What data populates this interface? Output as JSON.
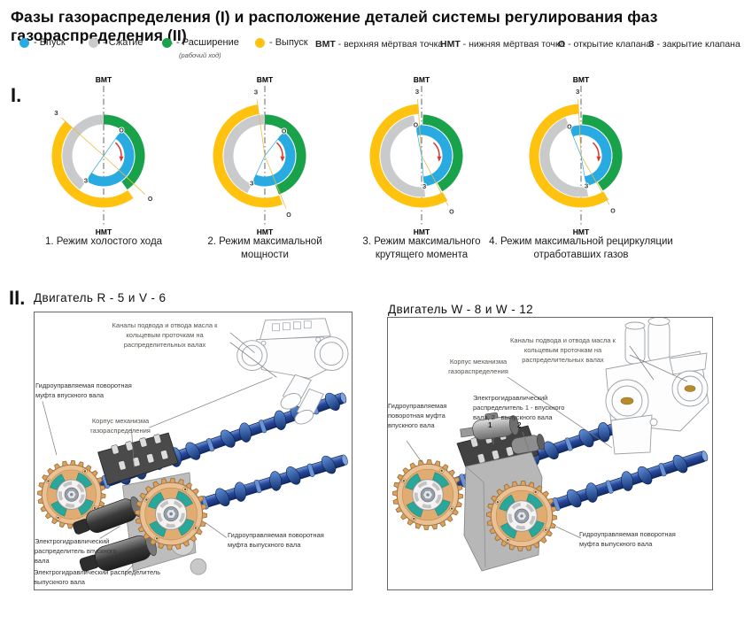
{
  "title": "Фазы газораспределения (I) и расположение деталей системы регулирования фаз газораспределения (II)",
  "legend": {
    "items": [
      {
        "label": "- Впуск",
        "color": "#29ABE2"
      },
      {
        "label": "- Сжатие",
        "color": "#C9CACC"
      },
      {
        "label": "- Расширение",
        "color": "#1AA24B",
        "note": "(рабочий ход)"
      },
      {
        "label": "- Выпуск",
        "color": "#FFC20E"
      }
    ],
    "definitions": [
      {
        "term": "ВМТ",
        "text": "- верхняя мёртвая точка"
      },
      {
        "term": "НМТ",
        "text": "- нижняя мёртвая точка"
      },
      {
        "term": "О",
        "text": "- открытие клапана"
      },
      {
        "term": "З",
        "text": "- закрытие клапана"
      }
    ]
  },
  "section1": {
    "numeral": "I.",
    "labels": {
      "top": "ВМТ",
      "bottom": "НМТ",
      "open": "О",
      "close": "З"
    },
    "colors": {
      "intake": "#29ABE2",
      "compression": "#C9CACC",
      "expansion": "#1AA24B",
      "exhaust": "#FFC20E",
      "rotation_arrow": "#D8382E"
    },
    "diagrams": [
      {
        "caption": "1. Режим холостого хода",
        "green": [
          0,
          145
        ],
        "yellow": [
          145,
          312
        ],
        "gray": [
          215,
          360
        ],
        "blue": [
          35,
          215
        ],
        "yellowOpen": 133,
        "yellowClose": 312,
        "blueOpen": 35,
        "blueClose": 215
      },
      {
        "caption": "2. Режим максимальной мощности",
        "green": [
          0,
          160
        ],
        "yellow": [
          160,
          352
        ],
        "gray": [
          205,
          360
        ],
        "blue": [
          38,
          205
        ],
        "yellowOpen": 158,
        "yellowClose": 352,
        "blueOpen": 38,
        "blueClose": 205
      },
      {
        "caption": "3. Режим максимального крутящего момента",
        "green": [
          2,
          150
        ],
        "yellow": [
          150,
          356
        ],
        "gray": [
          175,
          349
        ],
        "blue": [
          349,
          535
        ],
        "yellowOpen": 152,
        "yellowClose": 356,
        "blueOpen": 349,
        "blueClose": 175
      },
      {
        "caption": "4. Режим максимальной рециркуляции отработавших газов",
        "green": [
          2,
          148
        ],
        "yellow": [
          148,
          357
        ],
        "gray": [
          170,
          338
        ],
        "blue": [
          338,
          530
        ],
        "yellowOpen": 150,
        "yellowClose": 357,
        "blueOpen": 338,
        "blueClose": 170
      }
    ]
  },
  "section2": {
    "numeral": "II.",
    "engines": [
      {
        "heading": "Двигатель R - 5 и V - 6",
        "labels": {
          "oil_channels": "Каналы подвода и отвода масла к кольцевым проточкам на распределительных валах",
          "intake_coupling": "Гидроуправляемая поворотная муфта впускного вала",
          "housing": "Корпус механизма газораспределения",
          "intake_distributor": "Электрогидравлический распределитель впускного вала",
          "exhaust_distributor": "Электрогидравлический распределитель выпускного вала",
          "exhaust_coupling": "Гидроуправляемая поворотная муфта выпускного вала"
        }
      },
      {
        "heading": "Двигатель W - 8 и W - 12",
        "labels": {
          "oil_channels": "Каналы подвода и отвода масла к кольцевым проточкам на распределительных валах",
          "housing": "Корпус механизма газораспределения",
          "distributor": "Электрогидравлический распределитель 1 - впускного вала, 2 - выпускного вала",
          "marker_intake": "1",
          "marker_exhaust": "2",
          "intake_coupling": "Гидроуправляемая поворотная муфта впускного вала",
          "exhaust_coupling": "Гидроуправляемая поворотная муфта выпускного вала"
        }
      }
    ]
  }
}
